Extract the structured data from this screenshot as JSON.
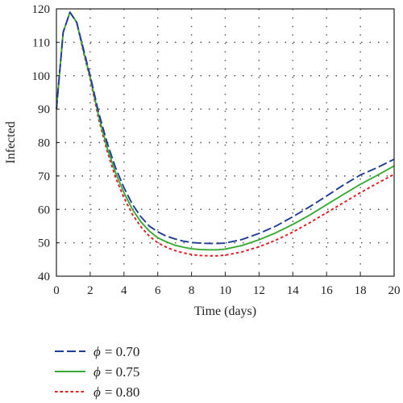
{
  "chart_data": {
    "type": "line",
    "xlabel": "Time (days)",
    "ylabel": "Infected",
    "xlim": [
      0,
      20
    ],
    "ylim": [
      40,
      120
    ],
    "xticks": [
      0,
      2,
      4,
      6,
      8,
      10,
      12,
      14,
      16,
      18,
      20
    ],
    "yticks": [
      40,
      50,
      60,
      70,
      80,
      90,
      100,
      110,
      120
    ],
    "grid": true,
    "legend_position": "below",
    "series": [
      {
        "name": "= 0.70",
        "symbol": "ϕ",
        "color": "#1f3d99",
        "dash": "dashed",
        "x": [
          0,
          0.4,
          0.8,
          1.2,
          1.6,
          2,
          2.5,
          3,
          3.5,
          4,
          4.5,
          5,
          5.5,
          6,
          6.5,
          7,
          7.5,
          8,
          8.5,
          9,
          9.5,
          10,
          11,
          12,
          13,
          14,
          15,
          16,
          17,
          18,
          19,
          20
        ],
        "values": [
          90,
          113,
          119,
          116,
          108,
          100,
          89,
          80,
          72.5,
          66.5,
          61.5,
          57.8,
          55,
          53.3,
          52,
          51.2,
          50.5,
          50.1,
          49.9,
          49.8,
          49.8,
          49.9,
          51,
          52.8,
          55,
          57.8,
          60.8,
          64,
          67.3,
          70.3,
          72.5,
          75
        ]
      },
      {
        "name": "= 0.75",
        "symbol": "ϕ",
        "color": "#3aaa35",
        "dash": "solid",
        "x": [
          0,
          0.4,
          0.8,
          1.2,
          1.6,
          2,
          2.5,
          3,
          3.5,
          4,
          4.5,
          5,
          5.5,
          6,
          6.5,
          7,
          7.5,
          8,
          8.5,
          9,
          9.5,
          10,
          11,
          12,
          13,
          14,
          15,
          16,
          17,
          18,
          19,
          20
        ],
        "values": [
          90,
          113,
          119,
          116,
          107.5,
          99.5,
          88,
          78.5,
          71,
          65,
          60,
          56.3,
          53.5,
          51.5,
          50.3,
          49.3,
          48.7,
          48.2,
          48,
          47.9,
          47.9,
          48.1,
          49.2,
          50.9,
          53,
          55.5,
          58.3,
          61.4,
          64.5,
          67.5,
          70.2,
          73
        ]
      },
      {
        "name": "= 0.80",
        "symbol": "ϕ",
        "color": "#e8191e",
        "dash": "dotted",
        "x": [
          0,
          0.4,
          0.8,
          1.2,
          1.6,
          2,
          2.5,
          3,
          3.5,
          4,
          4.5,
          5,
          5.5,
          6,
          6.5,
          7,
          7.5,
          8,
          8.5,
          9,
          9.5,
          10,
          11,
          12,
          13,
          14,
          15,
          16,
          17,
          18,
          19,
          20
        ],
        "values": [
          90,
          113,
          119,
          116,
          107,
          99,
          87,
          77.5,
          69.5,
          63.5,
          58.5,
          54.8,
          52,
          50,
          48.7,
          47.7,
          47,
          46.5,
          46.2,
          46.1,
          46.1,
          46.3,
          47.3,
          48.8,
          50.8,
          53.2,
          56,
          59,
          62,
          65,
          67.8,
          70.5
        ]
      }
    ]
  }
}
